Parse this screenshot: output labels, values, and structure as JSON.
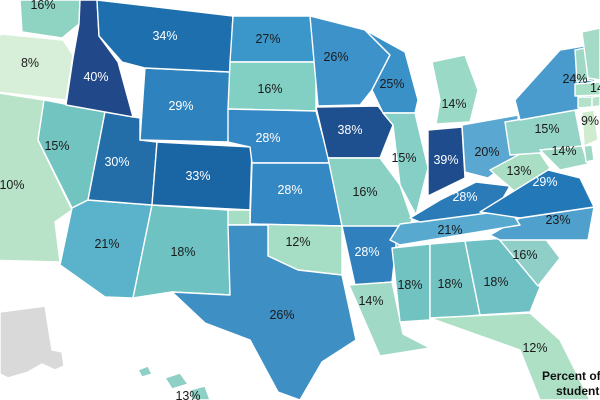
{
  "legend": {
    "title_line1": "Percent of",
    "title_line2": "students ag"
  },
  "colors": {
    "background": "#ffffff",
    "no_data": "#d9d9d9",
    "scale": [
      "#c8ebd0",
      "#9fdcc2",
      "#70c6c3",
      "#3f9fcb",
      "#2b84bf",
      "#1f6fb0",
      "#1c4f92"
    ]
  },
  "states": [
    {
      "code": "WA",
      "label": "16%"
    },
    {
      "code": "OR",
      "label": "8%"
    },
    {
      "code": "CA",
      "label": "10%"
    },
    {
      "code": "ID",
      "label": "40%"
    },
    {
      "code": "NV",
      "label": "15%"
    },
    {
      "code": "MT",
      "label": "34%"
    },
    {
      "code": "WY",
      "label": "29%"
    },
    {
      "code": "UT",
      "label": "30%"
    },
    {
      "code": "CO",
      "label": "33%"
    },
    {
      "code": "AZ",
      "label": "21%"
    },
    {
      "code": "NM",
      "label": "18%"
    },
    {
      "code": "ND",
      "label": "27%"
    },
    {
      "code": "SD",
      "label": "16%"
    },
    {
      "code": "NE",
      "label": "28%"
    },
    {
      "code": "KS",
      "label": "28%"
    },
    {
      "code": "OK",
      "label": "12%"
    },
    {
      "code": "TX",
      "label": "26%"
    },
    {
      "code": "MN",
      "label": "26%"
    },
    {
      "code": "IA",
      "label": "38%"
    },
    {
      "code": "MO",
      "label": "16%"
    },
    {
      "code": "AR",
      "label": "28%"
    },
    {
      "code": "LA",
      "label": "14%"
    },
    {
      "code": "WI",
      "label": "25%"
    },
    {
      "code": "IL",
      "label": "15%"
    },
    {
      "code": "MI",
      "label": "14%"
    },
    {
      "code": "IN",
      "label": "39%"
    },
    {
      "code": "OH",
      "label": "20%"
    },
    {
      "code": "KY",
      "label": "28%"
    },
    {
      "code": "TN",
      "label": "21%"
    },
    {
      "code": "MS",
      "label": "18%"
    },
    {
      "code": "AL",
      "label": "18%"
    },
    {
      "code": "GA",
      "label": "18%"
    },
    {
      "code": "FL",
      "label": "12%"
    },
    {
      "code": "SC",
      "label": "16%"
    },
    {
      "code": "NC",
      "label": "23%"
    },
    {
      "code": "VA",
      "label": "29%"
    },
    {
      "code": "WV",
      "label": "13%"
    },
    {
      "code": "PA",
      "label": "15%"
    },
    {
      "code": "NY",
      "label": "24%"
    },
    {
      "code": "MD",
      "label": "14%"
    },
    {
      "code": "NJ",
      "label": "9%"
    },
    {
      "code": "ME",
      "label": "14"
    },
    {
      "code": "HI",
      "label": "13%"
    },
    {
      "code": "AK",
      "label": ""
    },
    {
      "code": "VT",
      "label": ""
    },
    {
      "code": "NH",
      "label": ""
    },
    {
      "code": "MA",
      "label": ""
    },
    {
      "code": "CT",
      "label": ""
    },
    {
      "code": "RI",
      "label": ""
    },
    {
      "code": "DE",
      "label": ""
    }
  ]
}
